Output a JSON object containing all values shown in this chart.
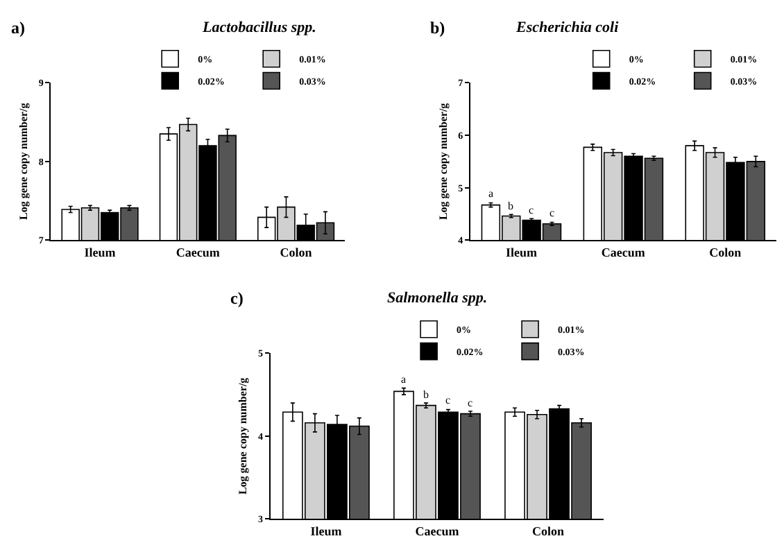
{
  "chart_data": [
    {
      "type": "bar",
      "title": "Lactobacillus spp.",
      "ylabel": "Log gene copy number/g",
      "annotations": [
        "a)"
      ],
      "categories": [
        "Ileum",
        "Caecum",
        "Colon"
      ],
      "ylim": [
        7,
        9
      ],
      "yticks": [
        7,
        8,
        9
      ],
      "grid": false,
      "legend": "top right",
      "series": [
        {
          "name": "0%",
          "color": "#ffffff",
          "values": [
            7.39,
            8.35,
            7.29
          ],
          "errors": [
            0.04,
            0.08,
            0.13
          ]
        },
        {
          "name": "0.01%",
          "color": "#d0d0d0",
          "values": [
            7.41,
            8.47,
            7.42
          ],
          "errors": [
            0.03,
            0.08,
            0.13
          ]
        },
        {
          "name": "0.02%",
          "color": "#000000",
          "values": [
            7.35,
            8.2,
            7.19
          ],
          "errors": [
            0.03,
            0.08,
            0.14
          ]
        },
        {
          "name": "0.03%",
          "color": "#555555",
          "values": [
            7.41,
            8.33,
            7.22
          ],
          "errors": [
            0.03,
            0.08,
            0.14
          ]
        }
      ]
    },
    {
      "type": "bar",
      "title": "Escherichia coli",
      "ylabel": "Log gene copy number/g",
      "annotations": [
        "b)"
      ],
      "categories": [
        "Ileum",
        "Caecum",
        "Colon"
      ],
      "ylim": [
        4,
        7
      ],
      "yticks": [
        4,
        5,
        6,
        7
      ],
      "grid": false,
      "legend": "top right",
      "series": [
        {
          "name": "0%",
          "color": "#ffffff",
          "values": [
            4.67,
            5.77,
            5.8
          ],
          "errors": [
            0.04,
            0.06,
            0.09
          ],
          "value_labels": [
            "a",
            null,
            null
          ]
        },
        {
          "name": "0.01%",
          "color": "#d0d0d0",
          "values": [
            4.46,
            5.67,
            5.67
          ],
          "errors": [
            0.03,
            0.06,
            0.09
          ],
          "value_labels": [
            "b",
            null,
            null
          ]
        },
        {
          "name": "0.02%",
          "color": "#000000",
          "values": [
            4.38,
            5.6,
            5.48
          ],
          "errors": [
            0.03,
            0.05,
            0.1
          ],
          "value_labels": [
            "c",
            null,
            null
          ]
        },
        {
          "name": "0.03%",
          "color": "#555555",
          "values": [
            4.31,
            5.56,
            5.5
          ],
          "errors": [
            0.03,
            0.04,
            0.1
          ],
          "value_labels": [
            "c",
            null,
            null
          ]
        }
      ]
    },
    {
      "type": "bar",
      "title": "Salmonella spp.",
      "ylabel": "Log gene copy number/g",
      "annotations": [
        "c)"
      ],
      "categories": [
        "Ileum",
        "Caecum",
        "Colon"
      ],
      "ylim": [
        3,
        5
      ],
      "yticks": [
        3,
        4,
        5
      ],
      "grid": false,
      "legend": "top right",
      "series": [
        {
          "name": "0%",
          "color": "#ffffff",
          "values": [
            4.29,
            4.54,
            4.29
          ],
          "errors": [
            0.11,
            0.04,
            0.05
          ],
          "value_labels": [
            null,
            "a",
            null
          ]
        },
        {
          "name": "0.01%",
          "color": "#d0d0d0",
          "values": [
            4.16,
            4.37,
            4.26
          ],
          "errors": [
            0.11,
            0.03,
            0.05
          ],
          "value_labels": [
            null,
            "b",
            null
          ]
        },
        {
          "name": "0.02%",
          "color": "#000000",
          "values": [
            4.14,
            4.29,
            4.33
          ],
          "errors": [
            0.11,
            0.03,
            0.04
          ],
          "value_labels": [
            null,
            "c",
            null
          ]
        },
        {
          "name": "0.03%",
          "color": "#555555",
          "values": [
            4.12,
            4.27,
            4.16
          ],
          "errors": [
            0.1,
            0.03,
            0.05
          ],
          "value_labels": [
            null,
            "c",
            null
          ]
        }
      ]
    }
  ]
}
